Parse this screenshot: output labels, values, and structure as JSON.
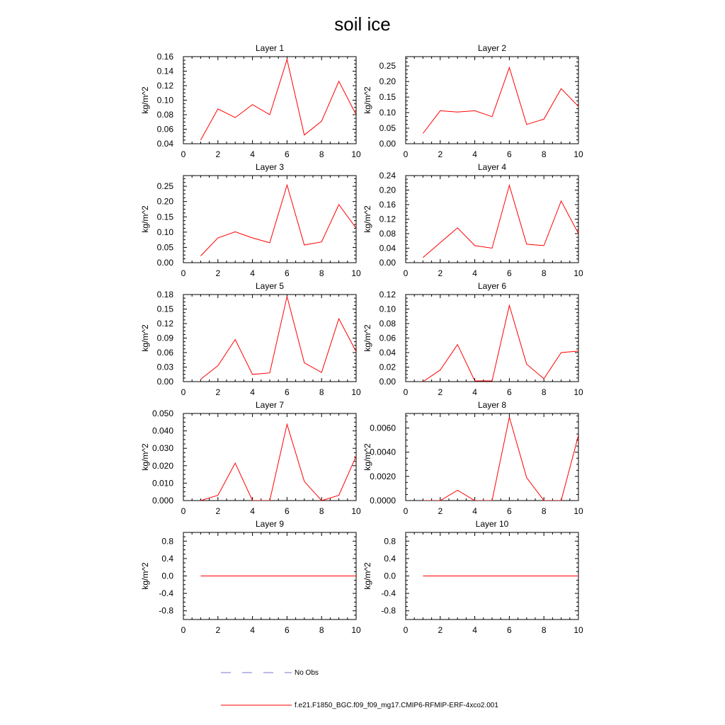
{
  "title": "soil ice",
  "legend": {
    "entries": [
      {
        "label": "No Obs",
        "style": "dashed",
        "color": "#7777cc"
      },
      {
        "label": "f.e21.F1850_BGC.f09_f09_mg17.CMIP6-RFMIP-ERF-4xco2.001",
        "style": "solid",
        "color": "#ff0000"
      }
    ]
  },
  "series_color": "#ff0000",
  "chart_data": [
    {
      "type": "line",
      "title": "Layer 1",
      "ylabel": "kg/m^2",
      "xlim": [
        0,
        10
      ],
      "ylim": [
        0.04,
        0.16
      ],
      "xticks": [
        0,
        2,
        4,
        6,
        8,
        10
      ],
      "xtick_labels": [
        "0",
        "2",
        "4",
        "6",
        "8",
        "10"
      ],
      "yticks": [
        0.04,
        0.06,
        0.08,
        0.1,
        0.12,
        0.14,
        0.16
      ],
      "ytick_labels": [
        "0.04",
        "0.06",
        "0.08",
        "0.10",
        "0.12",
        "0.14",
        "0.16"
      ],
      "x": [
        1,
        2,
        3,
        4,
        5,
        6,
        7,
        8,
        9,
        10
      ],
      "series": [
        {
          "values": [
            0.045,
            0.088,
            0.076,
            0.094,
            0.08,
            0.156,
            0.052,
            0.071,
            0.126,
            0.08
          ]
        }
      ]
    },
    {
      "type": "line",
      "title": "Layer 2",
      "ylabel": "kg/m^2",
      "xlim": [
        0,
        10
      ],
      "ylim": [
        0,
        0.28
      ],
      "xticks": [
        0,
        2,
        4,
        6,
        8,
        10
      ],
      "xtick_labels": [
        "0",
        "2",
        "4",
        "6",
        "8",
        "10"
      ],
      "yticks": [
        0,
        0.05,
        0.1,
        0.15,
        0.2,
        0.25
      ],
      "ytick_labels": [
        "0.00",
        "0.05",
        "0.10",
        "0.15",
        "0.20",
        "0.25"
      ],
      "x": [
        1,
        2,
        3,
        4,
        5,
        6,
        7,
        8,
        9,
        10
      ],
      "series": [
        {
          "values": [
            0.033,
            0.106,
            0.102,
            0.106,
            0.087,
            0.245,
            0.062,
            0.079,
            0.177,
            0.12
          ]
        }
      ]
    },
    {
      "type": "line",
      "title": "Layer 3",
      "ylabel": "kg/m^2",
      "xlim": [
        0,
        10
      ],
      "ylim": [
        0,
        0.285
      ],
      "xticks": [
        0,
        2,
        4,
        6,
        8,
        10
      ],
      "xtick_labels": [
        "0",
        "2",
        "4",
        "6",
        "8",
        "10"
      ],
      "yticks": [
        0,
        0.05,
        0.1,
        0.15,
        0.2,
        0.25
      ],
      "ytick_labels": [
        "0.00",
        "0.05",
        "0.10",
        "0.15",
        "0.20",
        "0.25"
      ],
      "x": [
        1,
        2,
        3,
        4,
        5,
        6,
        7,
        8,
        9,
        10
      ],
      "series": [
        {
          "values": [
            0.022,
            0.081,
            0.101,
            0.081,
            0.065,
            0.254,
            0.058,
            0.068,
            0.19,
            0.113
          ]
        }
      ]
    },
    {
      "type": "line",
      "title": "Layer 4",
      "ylabel": "kg/m^2",
      "xlim": [
        0,
        10
      ],
      "ylim": [
        0,
        0.24
      ],
      "xticks": [
        0,
        2,
        4,
        6,
        8,
        10
      ],
      "xtick_labels": [
        "0",
        "2",
        "4",
        "6",
        "8",
        "10"
      ],
      "yticks": [
        0,
        0.04,
        0.08,
        0.12,
        0.16,
        0.2,
        0.24
      ],
      "ytick_labels": [
        "0.00",
        "0.04",
        "0.08",
        "0.12",
        "0.16",
        "0.20",
        "0.24"
      ],
      "x": [
        1,
        2,
        3,
        4,
        5,
        6,
        7,
        8,
        9,
        10
      ],
      "series": [
        {
          "values": [
            0.014,
            0.055,
            0.096,
            0.047,
            0.04,
            0.213,
            0.051,
            0.047,
            0.17,
            0.08
          ]
        }
      ]
    },
    {
      "type": "line",
      "title": "Layer 5",
      "ylabel": "kg/m^2",
      "xlim": [
        0,
        10
      ],
      "ylim": [
        0,
        0.18
      ],
      "xticks": [
        0,
        2,
        4,
        6,
        8,
        10
      ],
      "xtick_labels": [
        "0",
        "2",
        "4",
        "6",
        "8",
        "10"
      ],
      "yticks": [
        0,
        0.03,
        0.06,
        0.09,
        0.12,
        0.15,
        0.18
      ],
      "ytick_labels": [
        "0.00",
        "0.03",
        "0.06",
        "0.09",
        "0.12",
        "0.15",
        "0.18"
      ],
      "x": [
        1,
        2,
        3,
        4,
        5,
        6,
        7,
        8,
        9,
        10
      ],
      "series": [
        {
          "values": [
            0.005,
            0.033,
            0.087,
            0.015,
            0.018,
            0.176,
            0.039,
            0.019,
            0.13,
            0.062
          ]
        }
      ]
    },
    {
      "type": "line",
      "title": "Layer 6",
      "ylabel": "kg/m^2",
      "xlim": [
        0,
        10
      ],
      "ylim": [
        0,
        0.12
      ],
      "xticks": [
        0,
        2,
        4,
        6,
        8,
        10
      ],
      "xtick_labels": [
        "0",
        "2",
        "4",
        "6",
        "8",
        "10"
      ],
      "yticks": [
        0,
        0.02,
        0.04,
        0.06,
        0.08,
        0.1,
        0.12
      ],
      "ytick_labels": [
        "0.00",
        "0.02",
        "0.04",
        "0.06",
        "0.08",
        "0.10",
        "0.12"
      ],
      "x": [
        1,
        2,
        3,
        4,
        5,
        6,
        7,
        8,
        9,
        10
      ],
      "series": [
        {
          "values": [
            0.0,
            0.016,
            0.051,
            0.001,
            0.001,
            0.105,
            0.024,
            0.004,
            0.04,
            0.042
          ]
        }
      ]
    },
    {
      "type": "line",
      "title": "Layer 7",
      "ylabel": "kg/m^2",
      "xlim": [
        0,
        10
      ],
      "ylim": [
        0,
        0.05
      ],
      "xticks": [
        0,
        2,
        4,
        6,
        8,
        10
      ],
      "xtick_labels": [
        "0",
        "2",
        "4",
        "6",
        "8",
        "10"
      ],
      "yticks": [
        0,
        0.01,
        0.02,
        0.03,
        0.04,
        0.05
      ],
      "ytick_labels": [
        "0.000",
        "0.010",
        "0.020",
        "0.030",
        "0.040",
        "0.050"
      ],
      "x": [
        1,
        2,
        3,
        4,
        5,
        6,
        7,
        8,
        9,
        10
      ],
      "series": [
        {
          "values": [
            0.0,
            0.003,
            0.0215,
            0.0,
            0.0,
            0.0438,
            0.011,
            0.0,
            0.003,
            0.0255
          ]
        }
      ]
    },
    {
      "type": "line",
      "title": "Layer 8",
      "ylabel": "kg/m^2",
      "xlim": [
        0,
        10
      ],
      "ylim": [
        0,
        0.0072
      ],
      "xticks": [
        0,
        2,
        4,
        6,
        8,
        10
      ],
      "xtick_labels": [
        "0",
        "2",
        "4",
        "6",
        "8",
        "10"
      ],
      "yticks": [
        0,
        0.002,
        0.004,
        0.006
      ],
      "ytick_labels": [
        "0.0000",
        "0.0020",
        "0.0040",
        "0.0060"
      ],
      "x": [
        1,
        2,
        3,
        4,
        5,
        6,
        7,
        8,
        9,
        10
      ],
      "series": [
        {
          "values": [
            0.0,
            0.0,
            0.00085,
            0.0,
            0.0,
            0.0069,
            0.0019,
            0.0,
            0.0,
            0.0054
          ]
        }
      ]
    },
    {
      "type": "line",
      "title": "Layer 9",
      "ylabel": "kg/m^2",
      "xlim": [
        0,
        10
      ],
      "ylim": [
        -1.0,
        1.0
      ],
      "xticks": [
        0,
        2,
        4,
        6,
        8,
        10
      ],
      "xtick_labels": [
        "0",
        "2",
        "4",
        "6",
        "8",
        "10"
      ],
      "yticks": [
        -0.8,
        -0.4,
        0,
        0.4,
        0.8
      ],
      "ytick_labels": [
        "-0.8",
        "-0.4",
        "0.0",
        "0.4",
        "0.8"
      ],
      "x": [
        1,
        2,
        3,
        4,
        5,
        6,
        7,
        8,
        9,
        10
      ],
      "series": [
        {
          "values": [
            0,
            0,
            0,
            0,
            0,
            0,
            0,
            0,
            0,
            0
          ]
        }
      ]
    },
    {
      "type": "line",
      "title": "Layer 10",
      "ylabel": "kg/m^2",
      "xlim": [
        0,
        10
      ],
      "ylim": [
        -1.0,
        1.0
      ],
      "xticks": [
        0,
        2,
        4,
        6,
        8,
        10
      ],
      "xtick_labels": [
        "0",
        "2",
        "4",
        "6",
        "8",
        "10"
      ],
      "yticks": [
        -0.8,
        -0.4,
        0,
        0.4,
        0.8
      ],
      "ytick_labels": [
        "-0.8",
        "-0.4",
        "0.0",
        "0.4",
        "0.8"
      ],
      "x": [
        1,
        2,
        3,
        4,
        5,
        6,
        7,
        8,
        9,
        10
      ],
      "series": [
        {
          "values": [
            0,
            0,
            0,
            0,
            0,
            0,
            0,
            0,
            0,
            0
          ]
        }
      ]
    }
  ]
}
